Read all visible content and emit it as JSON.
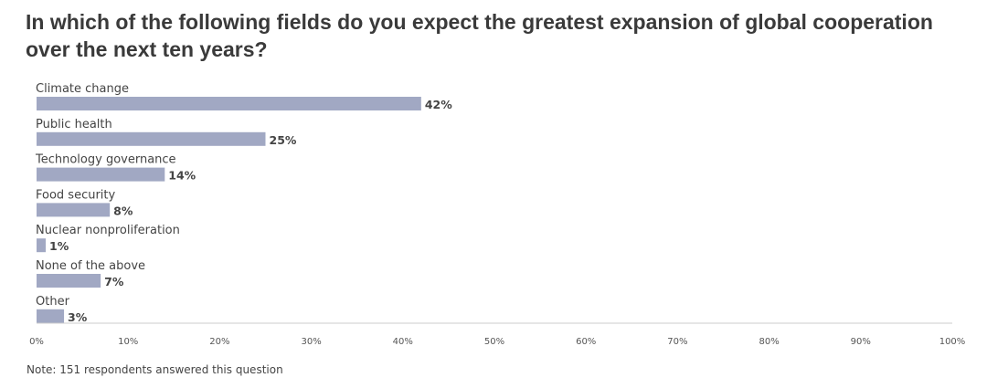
{
  "title": "In which of the following fields do you expect the greatest expansion of global cooperation over the next ten years?",
  "note": "Note: 151 respondents answered this question",
  "chart_data": {
    "type": "bar",
    "orientation": "horizontal",
    "categories": [
      "Climate change",
      "Public health",
      "Technology governance",
      "Food security",
      "Nuclear nonproliferation",
      "None of the above",
      "Other"
    ],
    "values": [
      42,
      25,
      14,
      8,
      1,
      7,
      3
    ],
    "value_labels": [
      "42%",
      "25%",
      "14%",
      "8%",
      "1%",
      "7%",
      "3%"
    ],
    "xlim": [
      0,
      100
    ],
    "ticks": [
      0,
      10,
      20,
      30,
      40,
      50,
      60,
      70,
      80,
      90,
      100
    ],
    "tick_labels": [
      "0%",
      "10%",
      "20%",
      "30%",
      "40%",
      "50%",
      "60%",
      "70%",
      "80%",
      "90%",
      "100%"
    ],
    "bar_color": "#a1a8c3",
    "grid": false,
    "legend": "none"
  }
}
